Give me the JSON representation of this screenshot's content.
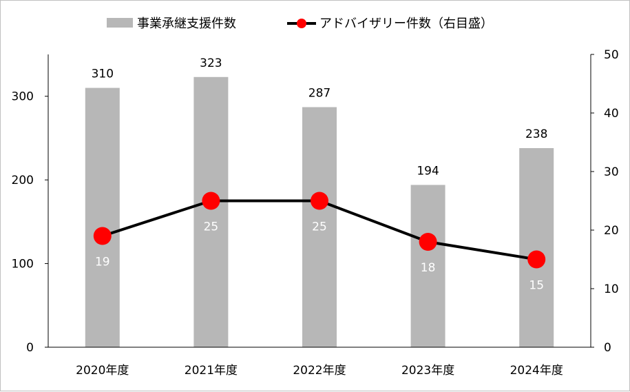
{
  "chart_data": {
    "type": "bar",
    "categories": [
      "2020年度",
      "2021年度",
      "2022年度",
      "2023年度",
      "2024年度"
    ],
    "series": [
      {
        "name": "事業承継支援件数",
        "type": "bar",
        "axis": "left",
        "color": "#b7b7b7",
        "values": [
          310,
          323,
          287,
          194,
          238
        ]
      },
      {
        "name": "アドバイザリー件数（右目盛）",
        "type": "line",
        "axis": "right",
        "color": "#000000",
        "marker_color": "#ff0000",
        "values": [
          19,
          25,
          25,
          18,
          15
        ]
      }
    ],
    "y_left": {
      "ylim": [
        0,
        350
      ],
      "ticks": [
        0,
        100,
        200,
        300
      ]
    },
    "y_right": {
      "ylim": [
        0,
        50
      ],
      "ticks": [
        0,
        10,
        20,
        30,
        40,
        50
      ]
    },
    "legend_position": "top-center",
    "grid": false
  }
}
